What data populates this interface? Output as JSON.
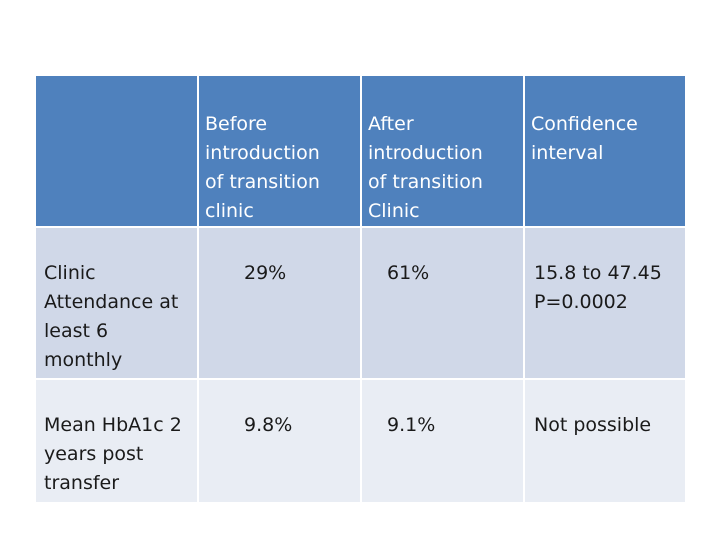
{
  "table": {
    "headers": [
      "",
      "Before\nintroduction\nof transition\nclinic",
      "After\nintroduction\nof transition\nClinic",
      "Confidence\ninterval"
    ],
    "rows": [
      {
        "label": "Clinic\nAttendance at\nleast 6\nmonthly",
        "before": "29%",
        "after": "61%",
        "ci": "  15.8 to 47.45\nP=0.0002"
      },
      {
        "label": "Mean HbA1c 2\nyears post\ntransfer",
        "before": "9.8%",
        "after": "9.1%",
        "ci": " Not possible"
      }
    ]
  },
  "colors": {
    "header_bg": "#4f81bd",
    "row_odd_bg": "#d0d8e8",
    "row_even_bg": "#e9edf4"
  }
}
